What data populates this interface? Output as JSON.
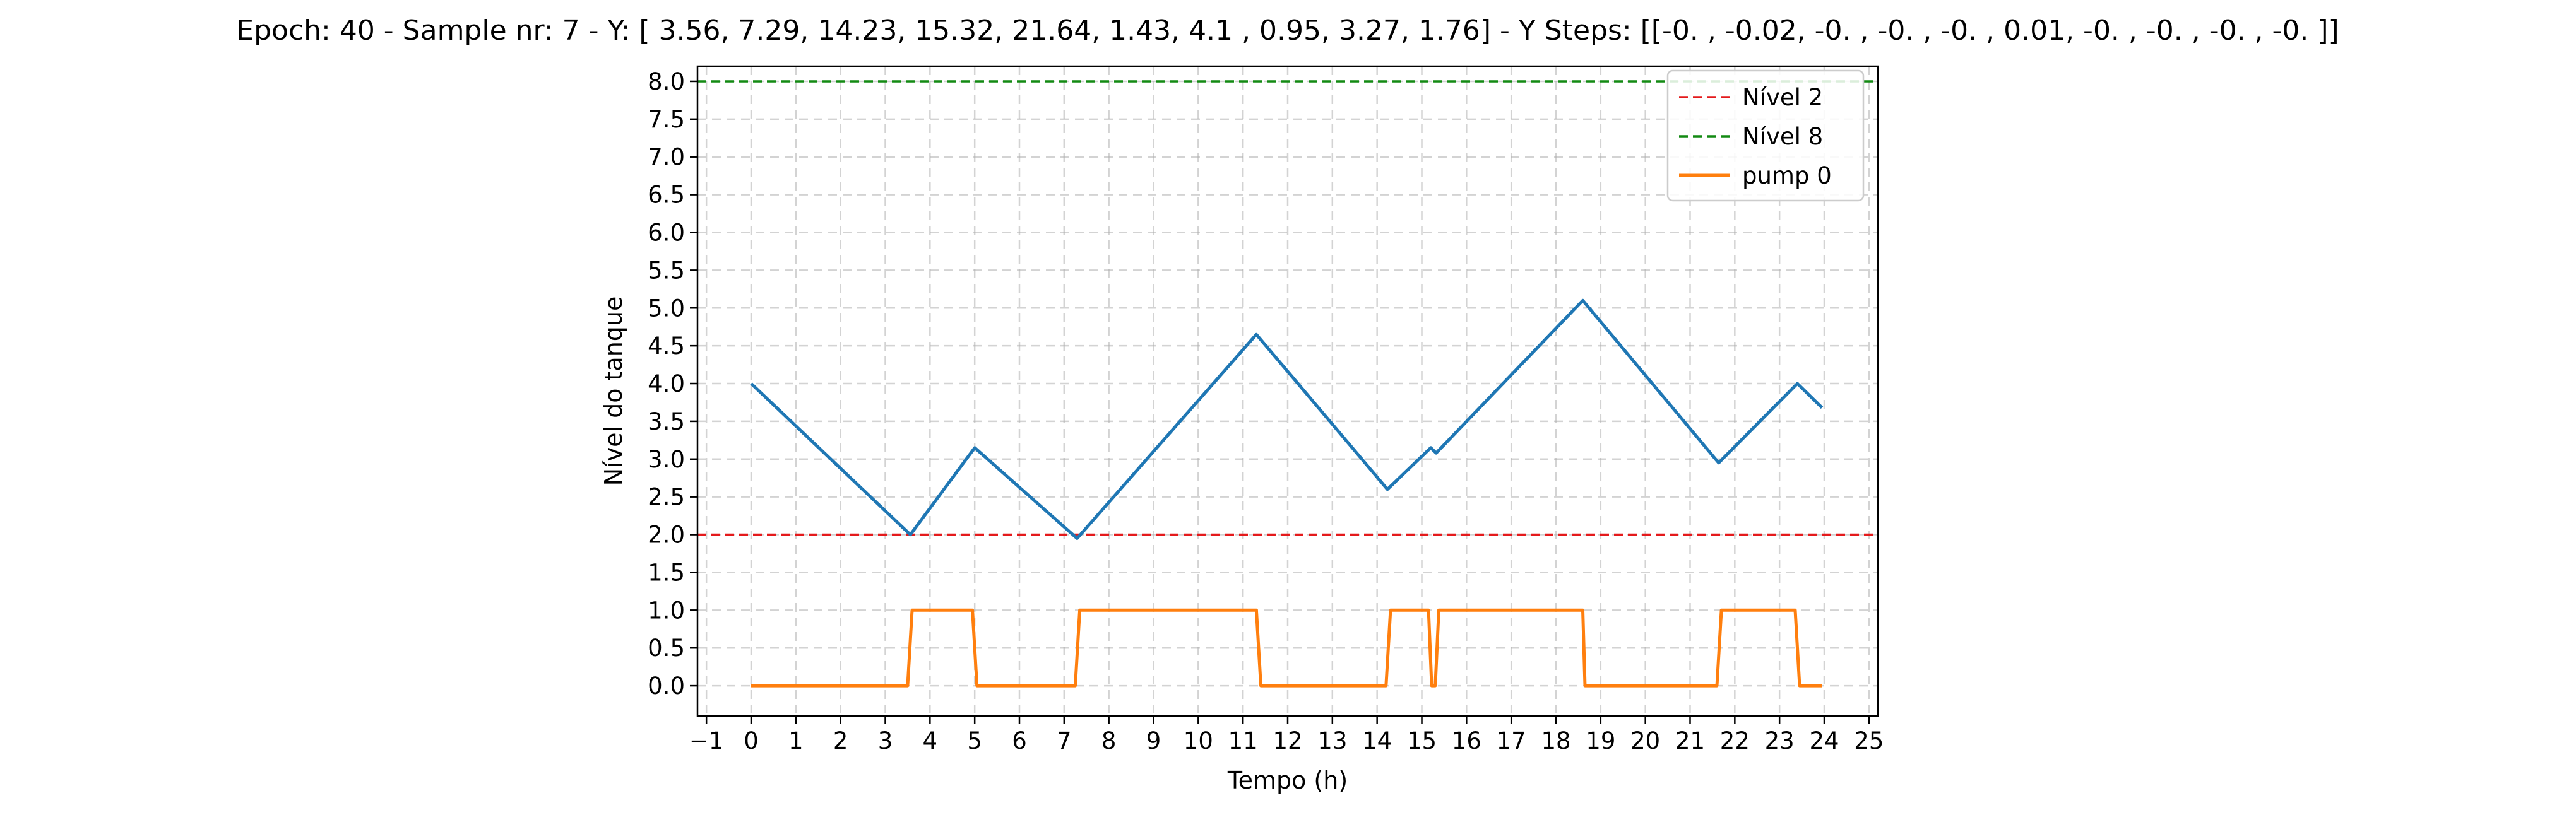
{
  "chart_data": {
    "type": "line",
    "title": "Epoch: 40 - Sample nr: 7 - Y: [ 3.56,  7.29, 14.23, 15.32, 21.64,  1.43,  4.1 ,  0.95,  3.27,  1.76] - Y Steps: [[-0.  , -0.02, -0.  , -0.  , -0.  ,  0.01, -0.  , -0.  , -0.  , -0.  ]]",
    "xlabel": "Tempo (h)",
    "ylabel": "Nível do tanque",
    "xlim": [
      -1.2,
      25.2
    ],
    "ylim": [
      -0.4,
      8.2
    ],
    "x_ticks": [
      -1,
      0,
      1,
      2,
      3,
      4,
      5,
      6,
      7,
      8,
      9,
      10,
      11,
      12,
      13,
      14,
      15,
      16,
      17,
      18,
      19,
      20,
      21,
      22,
      23,
      24,
      25
    ],
    "y_ticks": [
      0.0,
      0.5,
      1.0,
      1.5,
      2.0,
      2.5,
      3.0,
      3.5,
      4.0,
      4.5,
      5.0,
      5.5,
      6.0,
      6.5,
      7.0,
      7.5,
      8.0
    ],
    "grid": true,
    "legend_position": "top-right",
    "hlines": [
      {
        "name": "Nível 2",
        "y": 2.0,
        "color": "#e41a1c",
        "style": "dashed"
      },
      {
        "name": "Nível 8",
        "y": 8.0,
        "color": "#138a13",
        "style": "dashed"
      }
    ],
    "series": [
      {
        "name": "",
        "color": "#1f77b4",
        "x": [
          0,
          3.56,
          5.0,
          7.29,
          11.3,
          14.23,
          15.2,
          15.32,
          18.6,
          21.64,
          23.4,
          23.95
        ],
        "y": [
          4.0,
          2.0,
          3.15,
          1.95,
          4.65,
          2.6,
          3.15,
          3.08,
          5.1,
          2.95,
          4.0,
          3.68
        ]
      },
      {
        "name": "pump 0",
        "color": "#ff7f0e",
        "x": [
          0,
          3.5,
          3.6,
          4.95,
          5.05,
          7.25,
          7.35,
          11.3,
          11.4,
          14.2,
          14.3,
          15.15,
          15.22,
          15.3,
          15.38,
          18.6,
          18.65,
          21.6,
          21.7,
          23.35,
          23.45,
          23.95
        ],
        "y": [
          0,
          0,
          1,
          1,
          0,
          0,
          1,
          1,
          0,
          0,
          1,
          1,
          0,
          0,
          1,
          1,
          0,
          0,
          1,
          1,
          0,
          0
        ]
      }
    ]
  }
}
